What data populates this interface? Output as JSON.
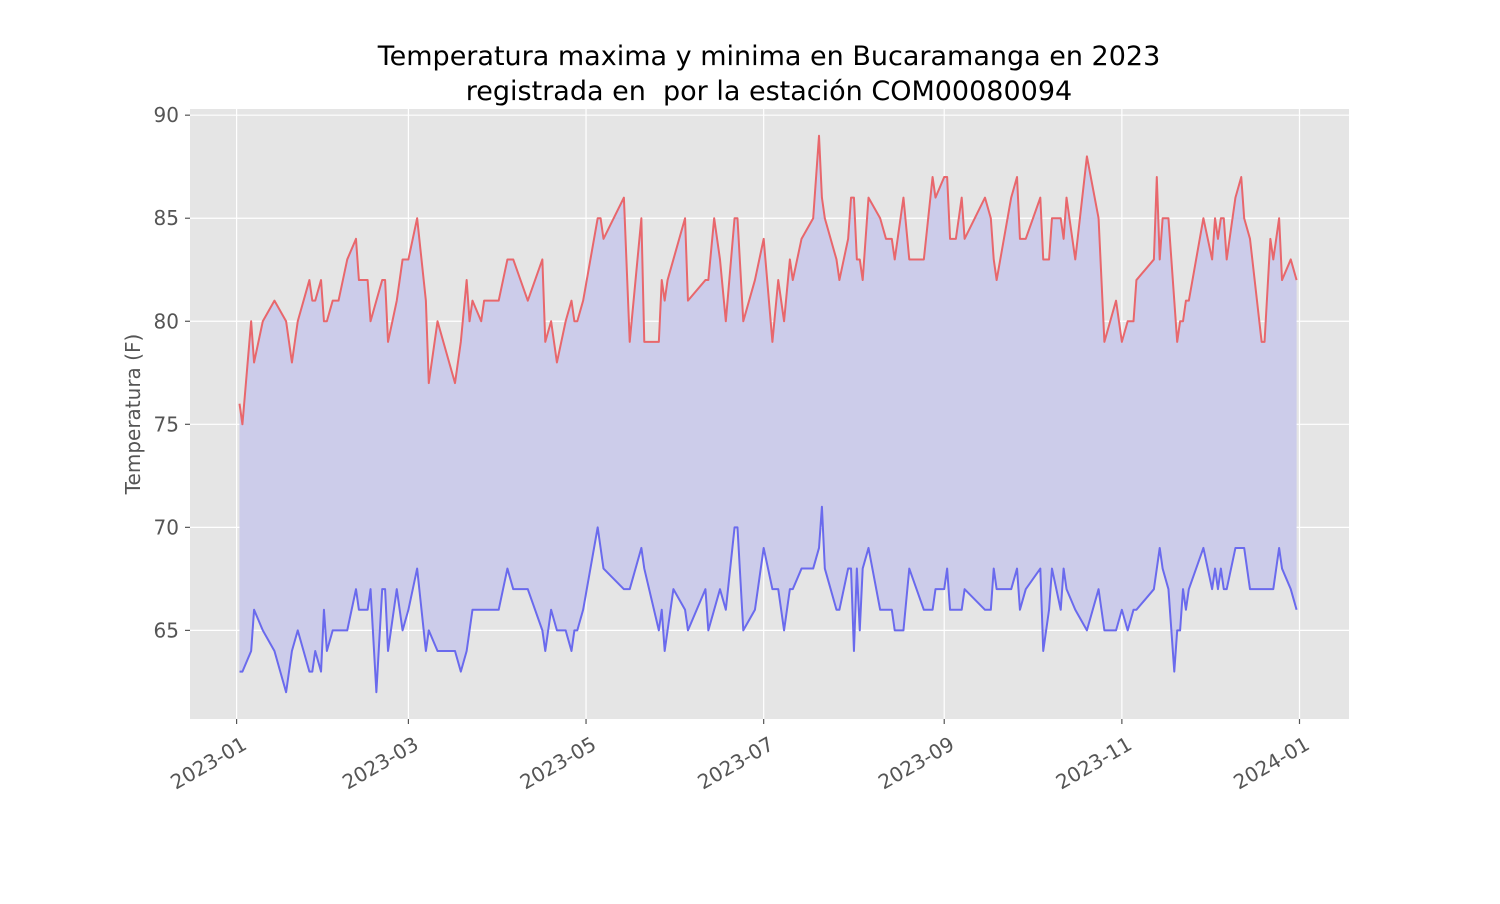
{
  "chart_data": {
    "type": "line",
    "title": [
      "Temperatura maxima y minima en Bucaramanga en 2023",
      "registrada en  por la estación COM00080094"
    ],
    "ylabel": "Temperatura (F)",
    "x": [
      "2023-01-02",
      "2023-01-03",
      "2023-01-06",
      "2023-01-07",
      "2023-01-10",
      "2023-01-14",
      "2023-01-18",
      "2023-01-20",
      "2023-01-22",
      "2023-01-26",
      "2023-01-27",
      "2023-01-28",
      "2023-01-30",
      "2023-01-31",
      "2023-02-01",
      "2023-02-03",
      "2023-02-05",
      "2023-02-08",
      "2023-02-11",
      "2023-02-12",
      "2023-02-15",
      "2023-02-16",
      "2023-02-18",
      "2023-02-20",
      "2023-02-21",
      "2023-02-22",
      "2023-02-25",
      "2023-02-27",
      "2023-03-01",
      "2023-03-04",
      "2023-03-07",
      "2023-03-08",
      "2023-03-11",
      "2023-03-17",
      "2023-03-19",
      "2023-03-21",
      "2023-03-22",
      "2023-03-23",
      "2023-03-26",
      "2023-03-27",
      "2023-04-01",
      "2023-04-04",
      "2023-04-06",
      "2023-04-11",
      "2023-04-16",
      "2023-04-17",
      "2023-04-19",
      "2023-04-21",
      "2023-04-24",
      "2023-04-26",
      "2023-04-27",
      "2023-04-28",
      "2023-04-30",
      "2023-05-05",
      "2023-05-06",
      "2023-05-07",
      "2023-05-14",
      "2023-05-16",
      "2023-05-20",
      "2023-05-21",
      "2023-05-26",
      "2023-05-27",
      "2023-05-28",
      "2023-05-29",
      "2023-05-31",
      "2023-06-04",
      "2023-06-05",
      "2023-06-11",
      "2023-06-12",
      "2023-06-14",
      "2023-06-16",
      "2023-06-18",
      "2023-06-21",
      "2023-06-22",
      "2023-06-24",
      "2023-06-28",
      "2023-07-01",
      "2023-07-04",
      "2023-07-06",
      "2023-07-08",
      "2023-07-10",
      "2023-07-11",
      "2023-07-14",
      "2023-07-18",
      "2023-07-20",
      "2023-07-21",
      "2023-07-22",
      "2023-07-26",
      "2023-07-27",
      "2023-07-30",
      "2023-07-31",
      "2023-08-01",
      "2023-08-02",
      "2023-08-03",
      "2023-08-04",
      "2023-08-06",
      "2023-08-10",
      "2023-08-12",
      "2023-08-14",
      "2023-08-15",
      "2023-08-18",
      "2023-08-20",
      "2023-08-25",
      "2023-08-28",
      "2023-08-29",
      "2023-09-01",
      "2023-09-02",
      "2023-09-03",
      "2023-09-05",
      "2023-09-07",
      "2023-09-08",
      "2023-09-15",
      "2023-09-17",
      "2023-09-18",
      "2023-09-19",
      "2023-09-24",
      "2023-09-26",
      "2023-09-27",
      "2023-09-29",
      "2023-10-04",
      "2023-10-05",
      "2023-10-07",
      "2023-10-08",
      "2023-10-11",
      "2023-10-12",
      "2023-10-13",
      "2023-10-16",
      "2023-10-20",
      "2023-10-24",
      "2023-10-26",
      "2023-10-28",
      "2023-10-30",
      "2023-11-01",
      "2023-11-03",
      "2023-11-05",
      "2023-11-06",
      "2023-11-12",
      "2023-11-13",
      "2023-11-14",
      "2023-11-15",
      "2023-11-17",
      "2023-11-19",
      "2023-11-20",
      "2023-11-21",
      "2023-11-22",
      "2023-11-23",
      "2023-11-24",
      "2023-11-29",
      "2023-12-02",
      "2023-12-03",
      "2023-12-04",
      "2023-12-05",
      "2023-12-06",
      "2023-12-07",
      "2023-12-10",
      "2023-12-12",
      "2023-12-13",
      "2023-12-15",
      "2023-12-19",
      "2023-12-20",
      "2023-12-22",
      "2023-12-23",
      "2023-12-25",
      "2023-12-26",
      "2023-12-29",
      "2023-12-31"
    ],
    "series": [
      {
        "color": "#e8676c",
        "values": [
          76,
          75,
          80,
          78,
          80,
          81,
          80,
          78,
          80,
          82,
          81,
          81,
          82,
          80,
          80,
          81,
          81,
          83,
          84,
          82,
          82,
          80,
          81,
          82,
          82,
          79,
          81,
          83,
          83,
          85,
          81,
          77,
          80,
          77,
          79,
          82,
          80,
          81,
          80,
          81,
          81,
          83,
          83,
          81,
          83,
          79,
          80,
          78,
          80,
          81,
          80,
          80,
          81,
          85,
          85,
          84,
          86,
          79,
          85,
          79,
          79,
          82,
          81,
          82,
          83,
          85,
          81,
          82,
          82,
          85,
          83,
          80,
          85,
          85,
          80,
          82,
          84,
          79,
          82,
          80,
          83,
          82,
          84,
          85,
          89,
          86,
          85,
          83,
          82,
          84,
          86,
          86,
          83,
          83,
          82,
          86,
          85,
          84,
          84,
          83,
          86,
          83,
          83,
          87,
          86,
          87,
          87,
          84,
          84,
          86,
          84,
          86,
          85,
          83,
          82,
          86,
          87,
          84,
          84,
          86,
          83,
          83,
          85,
          85,
          84,
          86,
          83,
          88,
          85,
          79,
          80,
          81,
          79,
          80,
          80,
          82,
          83,
          87,
          83,
          85,
          85,
          81,
          79,
          80,
          80,
          81,
          81,
          85,
          83,
          85,
          84,
          85,
          85,
          83,
          86,
          87,
          85,
          84,
          79,
          79,
          84,
          83,
          85,
          82,
          83,
          82
        ]
      },
      {
        "color": "#6a6aed",
        "values": [
          63,
          63,
          64,
          66,
          65,
          64,
          62,
          64,
          65,
          63,
          63,
          64,
          63,
          66,
          64,
          65,
          65,
          65,
          67,
          66,
          66,
          67,
          62,
          67,
          67,
          64,
          67,
          65,
          66,
          68,
          64,
          65,
          64,
          64,
          63,
          64,
          65,
          66,
          66,
          66,
          66,
          68,
          67,
          67,
          65,
          64,
          66,
          65,
          65,
          64,
          65,
          65,
          66,
          70,
          69,
          68,
          67,
          67,
          69,
          68,
          65,
          66,
          64,
          65,
          67,
          66,
          65,
          67,
          65,
          66,
          67,
          66,
          70,
          70,
          65,
          66,
          69,
          67,
          67,
          65,
          67,
          67,
          68,
          68,
          69,
          71,
          68,
          66,
          66,
          68,
          68,
          64,
          68,
          65,
          68,
          69,
          66,
          66,
          66,
          65,
          65,
          68,
          66,
          66,
          67,
          67,
          68,
          66,
          66,
          66,
          67,
          66,
          66,
          68,
          67,
          67,
          68,
          66,
          67,
          68,
          64,
          66,
          68,
          66,
          68,
          67,
          66,
          65,
          67,
          65,
          65,
          65,
          66,
          65,
          66,
          66,
          67,
          68,
          69,
          68,
          67,
          63,
          65,
          65,
          67,
          66,
          67,
          69,
          67,
          68,
          67,
          68,
          67,
          67,
          69,
          69,
          69,
          67,
          67,
          67,
          67,
          67,
          69,
          68,
          67,
          66
        ]
      }
    ],
    "fill_color": "#ccccea",
    "xlim": [
      "2022-12-16",
      "2024-01-18"
    ],
    "xticks": [
      {
        "value": "2023-01-01",
        "label": "2023-01"
      },
      {
        "value": "2023-03-01",
        "label": "2023-03"
      },
      {
        "value": "2023-05-01",
        "label": "2023-05"
      },
      {
        "value": "2023-07-01",
        "label": "2023-07"
      },
      {
        "value": "2023-09-01",
        "label": "2023-09"
      },
      {
        "value": "2023-11-01",
        "label": "2023-11"
      },
      {
        "value": "2024-01-01",
        "label": "2024-01"
      }
    ],
    "ylim": [
      60.7,
      90.3
    ],
    "yticks": [
      65,
      70,
      75,
      80,
      85,
      90
    ],
    "grid": true
  }
}
